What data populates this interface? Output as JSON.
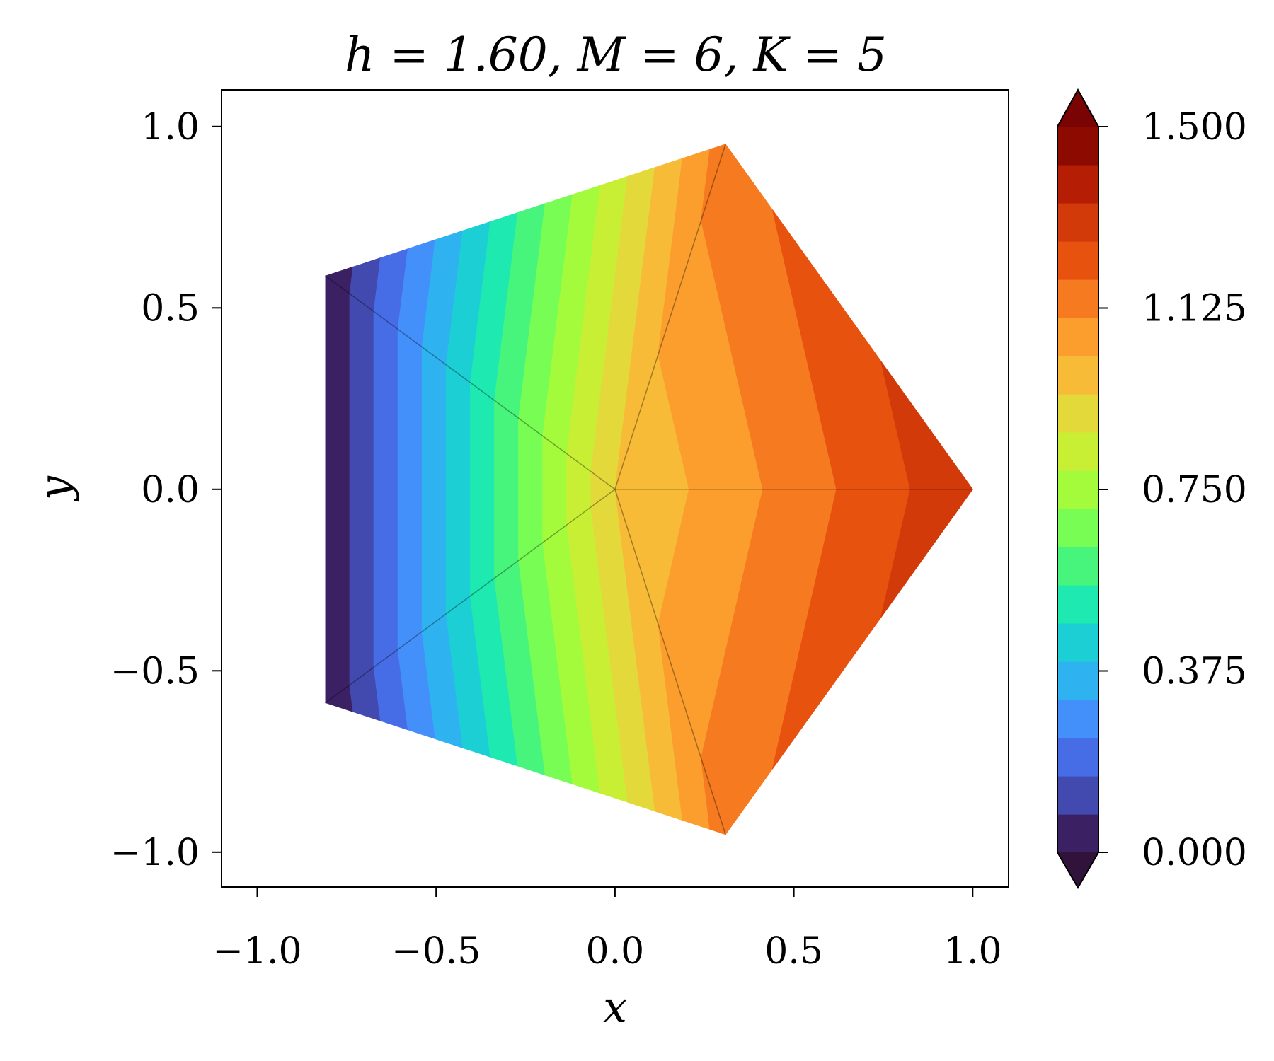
{
  "chart_data": {
    "type": "contour",
    "title": "h = 1.60, M = 6, K = 5",
    "title_parts": {
      "h": "1.60",
      "M": "6",
      "K": "5"
    },
    "xlabel": "x",
    "ylabel": "y",
    "xlim": [
      -1.1,
      1.1
    ],
    "ylim": [
      -1.1,
      1.1
    ],
    "xticks": [
      -1.0,
      -0.5,
      0.0,
      0.5,
      1.0
    ],
    "xtick_labels": [
      "−1.0",
      "−0.5",
      "0.0",
      "0.5",
      "1.0"
    ],
    "yticks": [
      -1.0,
      -0.5,
      0.0,
      0.5,
      1.0
    ],
    "ytick_labels": [
      "−1.0",
      "−0.5",
      "0.0",
      "0.5",
      "1.0"
    ],
    "grid": false,
    "mesh": {
      "nodes": [
        {
          "x": 0.0,
          "y": 0.0,
          "value": 0.947
        },
        {
          "x": 1.0,
          "y": 0.0,
          "value": 1.33
        },
        {
          "x": 0.309,
          "y": 0.951,
          "value": 1.15
        },
        {
          "x": -0.809,
          "y": 0.588,
          "value": 0.0
        },
        {
          "x": -0.809,
          "y": -0.588,
          "value": 0.0
        },
        {
          "x": 0.309,
          "y": -0.951,
          "value": 1.15
        }
      ],
      "triangles": [
        [
          0,
          1,
          2
        ],
        [
          0,
          2,
          3
        ],
        [
          0,
          3,
          4
        ],
        [
          0,
          4,
          5
        ],
        [
          0,
          5,
          1
        ]
      ]
    },
    "colorbar": {
      "vmin": 0.0,
      "vmax": 1.5,
      "n_levels": 19,
      "extend": "both",
      "ticks": [
        0.0,
        0.375,
        0.75,
        1.125,
        1.5
      ],
      "tick_labels": [
        "0.000",
        "0.375",
        "0.750",
        "1.125",
        "1.500"
      ],
      "colors": [
        "#3b2164",
        "#434aaf",
        "#476de6",
        "#4490fa",
        "#2eb3f0",
        "#1ccfd4",
        "#1de9b0",
        "#48f57c",
        "#78fd55",
        "#a3fb3c",
        "#c8ef34",
        "#e3d93a",
        "#f7bb38",
        "#fb9e2e",
        "#f57a20",
        "#e8520f",
        "#d33a0a",
        "#b51d04",
        "#8d0a01"
      ],
      "under_color": "#30123b",
      "over_color": "#7a0403"
    }
  }
}
